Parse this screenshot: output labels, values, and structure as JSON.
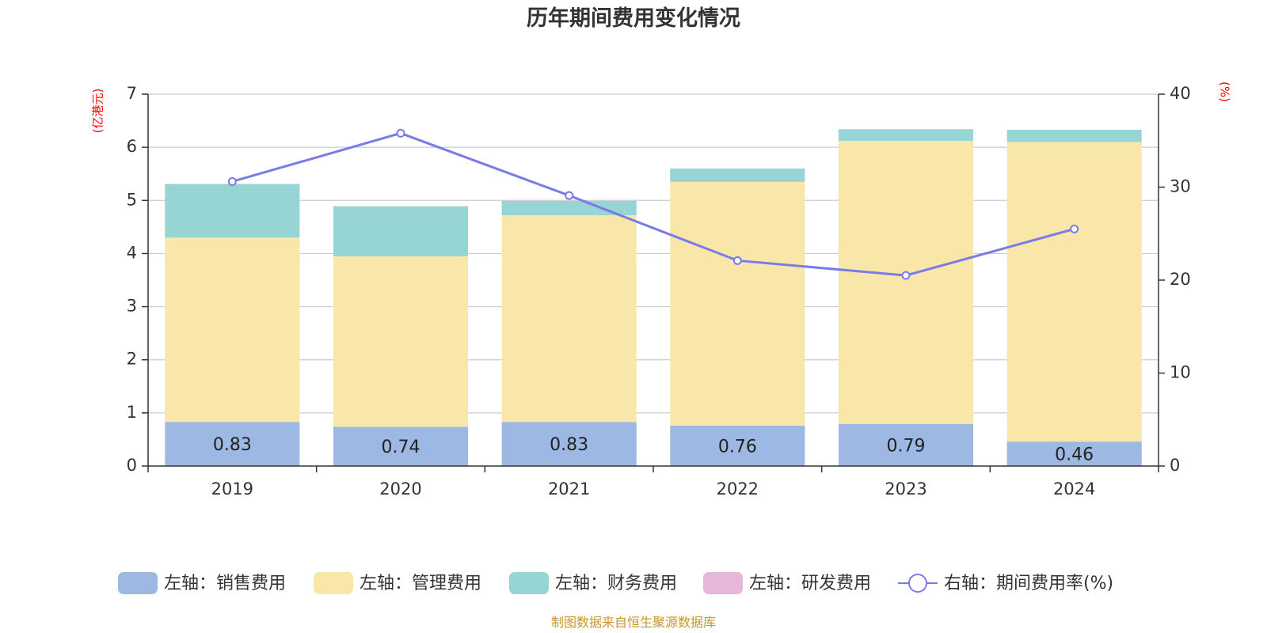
{
  "chart_data": {
    "type": "bar",
    "title": "历年期间费用变化情况",
    "categories": [
      "2019",
      "2020",
      "2021",
      "2022",
      "2023",
      "2024"
    ],
    "series": [
      {
        "name": "左轴：销售费用",
        "axis": "left",
        "stack": "fees",
        "color": "#9db8e2",
        "values": [
          0.83,
          0.74,
          0.83,
          0.76,
          0.79,
          0.46
        ],
        "labels_shown": true
      },
      {
        "name": "左轴：管理费用",
        "axis": "left",
        "stack": "fees",
        "color": "#f8e7a8",
        "values": [
          3.47,
          3.21,
          3.89,
          4.59,
          5.33,
          5.64
        ]
      },
      {
        "name": "左轴：财务费用",
        "axis": "left",
        "stack": "fees",
        "color": "#97d4d4",
        "values": [
          1.01,
          0.94,
          0.27,
          0.25,
          0.22,
          0.23
        ]
      },
      {
        "name": "左轴：研发费用",
        "axis": "left",
        "stack": "fees",
        "color": "#e8b7d8",
        "values": [
          0,
          0,
          0,
          0,
          0,
          0
        ]
      },
      {
        "name": "右轴：期间费用率(%)",
        "axis": "right",
        "type": "line",
        "color": "#7b7be8",
        "values": [
          30.6,
          35.8,
          29.1,
          22.1,
          20.5,
          25.5
        ]
      }
    ],
    "y_left": {
      "label": "(亿港元)",
      "ylim": [
        0,
        7
      ],
      "ticks": [
        "0",
        "1",
        "2",
        "3",
        "4",
        "5",
        "6",
        "7"
      ]
    },
    "y_right": {
      "label": "(%)",
      "ylim": [
        0,
        40
      ],
      "ticks": [
        "0",
        "10",
        "20",
        "30",
        "40"
      ]
    },
    "grid": true,
    "legend_position": "bottom"
  },
  "source": "制图数据来自恒生聚源数据库"
}
